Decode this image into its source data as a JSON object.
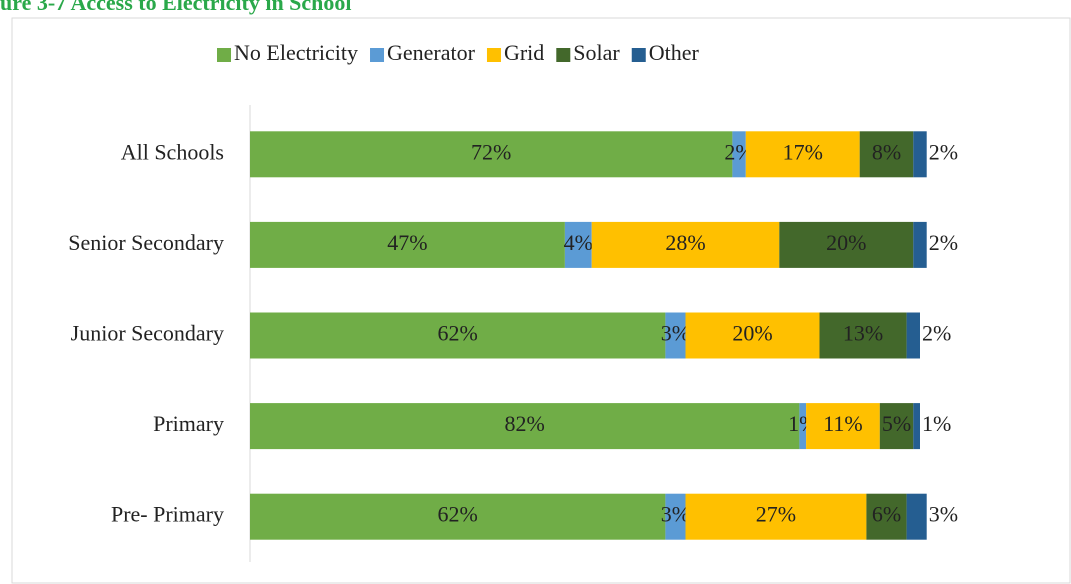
{
  "chart_data": {
    "type": "stacked-bar-horizontal",
    "title": "ure 3-7 Access to Electricity in School",
    "categories": [
      "All Schools",
      "Senior Secondary",
      "Junior Secondary",
      "Primary",
      "Pre- Primary"
    ],
    "series": [
      {
        "name": "No Electricity",
        "color": "#70ad47",
        "values": [
          72,
          47,
          62,
          82,
          62
        ],
        "value_labels": [
          "72%",
          "47%",
          "62%",
          "82%",
          "62%"
        ]
      },
      {
        "name": "Generator",
        "color": "#5b9bd5",
        "values": [
          2,
          4,
          3,
          1,
          3
        ],
        "value_labels": [
          "2%",
          "4%",
          "3%",
          "1%",
          "3%"
        ]
      },
      {
        "name": "Grid",
        "color": "#ffc000",
        "values": [
          17,
          28,
          20,
          11,
          27
        ],
        "value_labels": [
          "17%",
          "28%",
          "20%",
          "11%",
          "27%"
        ]
      },
      {
        "name": "Solar",
        "color": "#43682b",
        "values": [
          8,
          20,
          13,
          5,
          6
        ],
        "value_labels": [
          "8%",
          "20%",
          "13%",
          "5%",
          "6%"
        ]
      },
      {
        "name": "Other",
        "color": "#255e91",
        "values": [
          2,
          2,
          2,
          1,
          3
        ],
        "value_labels": [
          "2%",
          "2%",
          "2%",
          "1%",
          "3%"
        ]
      }
    ],
    "xlim": [
      0,
      100
    ],
    "legend": "top"
  }
}
